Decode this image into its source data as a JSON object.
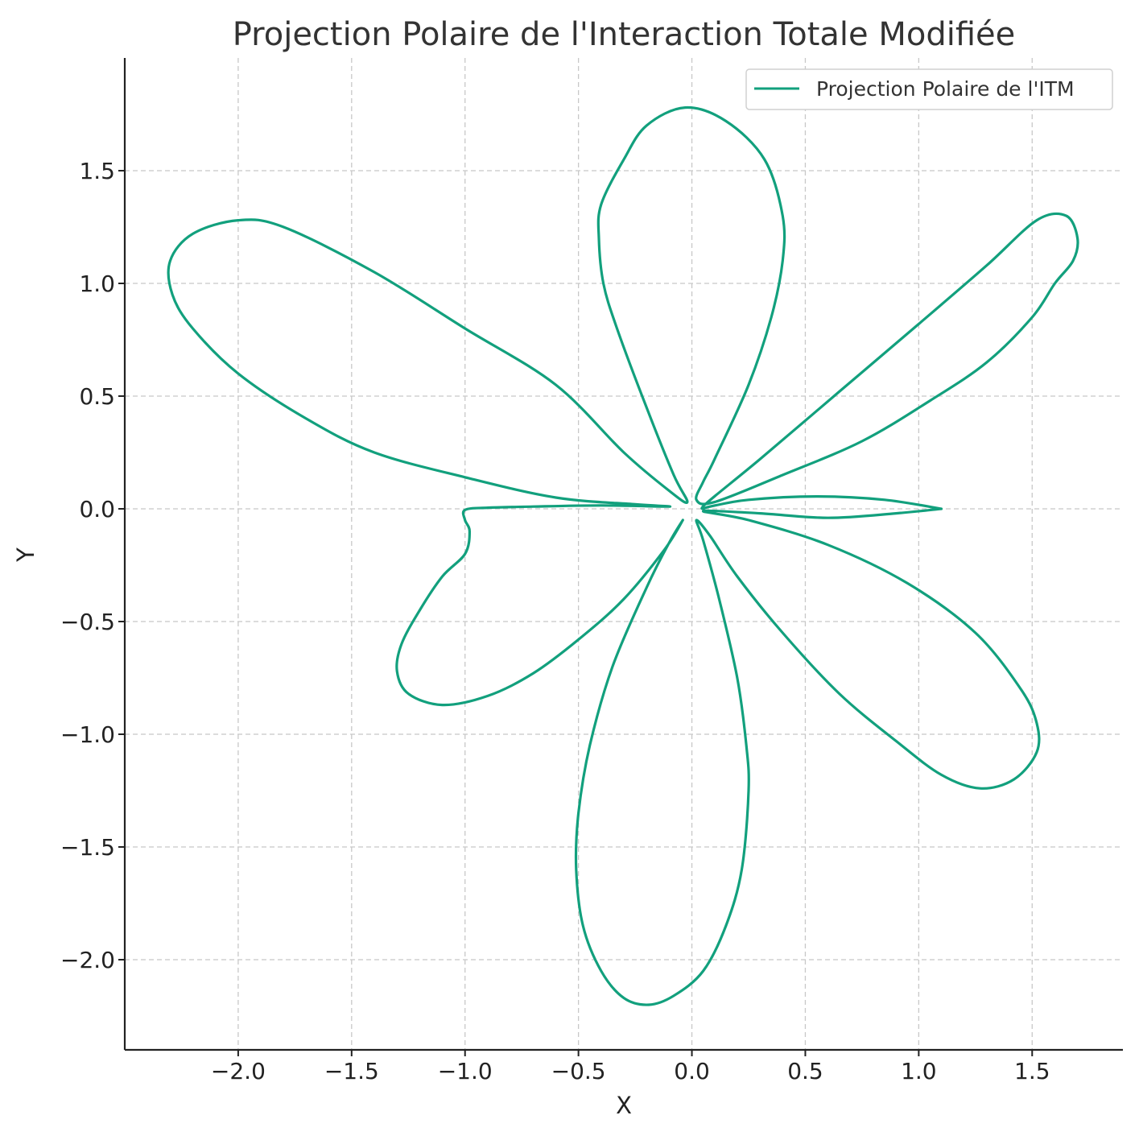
{
  "chart_data": {
    "type": "line",
    "title": "Projection Polaire de l'Interaction Totale Modifiée",
    "xlabel": "X",
    "ylabel": "Y",
    "xlim": [
      -2.5,
      1.9
    ],
    "ylim": [
      -2.4,
      2.0
    ],
    "x_ticks": [
      -2.0,
      -1.5,
      -1.0,
      -0.5,
      0.0,
      0.5,
      1.0,
      1.5
    ],
    "y_ticks": [
      -2.0,
      -1.5,
      -1.0,
      -0.5,
      0.0,
      0.5,
      1.0,
      1.5
    ],
    "x_tick_labels": [
      "−2.0",
      "−1.5",
      "−1.0",
      "−0.5",
      "0.0",
      "0.5",
      "1.0",
      "1.5"
    ],
    "y_tick_labels": [
      "−2.0",
      "−1.5",
      "−1.0",
      "−0.5",
      "0.0",
      "0.5",
      "1.0",
      "1.5"
    ],
    "grid": true,
    "legend_position": "top-right",
    "series": [
      {
        "name": "Projection Polaire de l'ITM",
        "color": "#12a07d",
        "points": [
          [
            1.1,
            0.0
          ],
          [
            0.85,
            0.04
          ],
          [
            0.55,
            0.055
          ],
          [
            0.25,
            0.04
          ],
          [
            0.08,
            0.01
          ],
          [
            0.05,
            0.0
          ],
          [
            0.07,
            0.03
          ],
          [
            0.3,
            0.22
          ],
          [
            0.65,
            0.52
          ],
          [
            1.0,
            0.82
          ],
          [
            1.3,
            1.08
          ],
          [
            1.52,
            1.28
          ],
          [
            1.65,
            1.3
          ],
          [
            1.7,
            1.2
          ],
          [
            1.68,
            1.1
          ],
          [
            1.6,
            1.0
          ],
          [
            1.5,
            0.85
          ],
          [
            1.3,
            0.65
          ],
          [
            1.05,
            0.48
          ],
          [
            0.75,
            0.3
          ],
          [
            0.4,
            0.15
          ],
          [
            0.1,
            0.03
          ],
          [
            0.02,
            0.04
          ],
          [
            0.05,
            0.12
          ],
          [
            0.1,
            0.22
          ],
          [
            0.25,
            0.55
          ],
          [
            0.35,
            0.85
          ],
          [
            0.4,
            1.1
          ],
          [
            0.4,
            1.3
          ],
          [
            0.32,
            1.55
          ],
          [
            0.15,
            1.72
          ],
          [
            -0.03,
            1.78
          ],
          [
            -0.2,
            1.7
          ],
          [
            -0.3,
            1.55
          ],
          [
            -0.4,
            1.35
          ],
          [
            -0.41,
            1.2
          ],
          [
            -0.39,
            1.0
          ],
          [
            -0.33,
            0.8
          ],
          [
            -0.2,
            0.45
          ],
          [
            -0.08,
            0.15
          ],
          [
            -0.02,
            0.03
          ],
          [
            -0.1,
            0.08
          ],
          [
            -0.3,
            0.25
          ],
          [
            -0.6,
            0.55
          ],
          [
            -1.0,
            0.8
          ],
          [
            -1.4,
            1.05
          ],
          [
            -1.8,
            1.25
          ],
          [
            -2.0,
            1.28
          ],
          [
            -2.2,
            1.22
          ],
          [
            -2.3,
            1.1
          ],
          [
            -2.29,
            0.95
          ],
          [
            -2.2,
            0.8
          ],
          [
            -2.0,
            0.6
          ],
          [
            -1.7,
            0.4
          ],
          [
            -1.4,
            0.25
          ],
          [
            -1.0,
            0.14
          ],
          [
            -0.6,
            0.05
          ],
          [
            -0.25,
            0.02
          ],
          [
            -0.1,
            0.01
          ],
          [
            -0.4,
            0.015
          ],
          [
            -0.7,
            0.01
          ],
          [
            -0.9,
            0.005
          ],
          [
            -1.0,
            -0.005
          ],
          [
            -1.0,
            -0.05
          ],
          [
            -0.98,
            -0.1
          ],
          [
            -1.0,
            -0.2
          ],
          [
            -1.1,
            -0.3
          ],
          [
            -1.2,
            -0.45
          ],
          [
            -1.28,
            -0.6
          ],
          [
            -1.3,
            -0.72
          ],
          [
            -1.25,
            -0.82
          ],
          [
            -1.1,
            -0.87
          ],
          [
            -0.9,
            -0.83
          ],
          [
            -0.7,
            -0.73
          ],
          [
            -0.5,
            -0.58
          ],
          [
            -0.3,
            -0.4
          ],
          [
            -0.12,
            -0.18
          ],
          [
            -0.04,
            -0.05
          ],
          [
            -0.1,
            -0.15
          ],
          [
            -0.2,
            -0.35
          ],
          [
            -0.35,
            -0.7
          ],
          [
            -0.45,
            -1.05
          ],
          [
            -0.5,
            -1.35
          ],
          [
            -0.51,
            -1.6
          ],
          [
            -0.48,
            -1.85
          ],
          [
            -0.4,
            -2.05
          ],
          [
            -0.3,
            -2.17
          ],
          [
            -0.19,
            -2.2
          ],
          [
            -0.08,
            -2.16
          ],
          [
            0.05,
            -2.05
          ],
          [
            0.15,
            -1.85
          ],
          [
            0.22,
            -1.6
          ],
          [
            0.25,
            -1.25
          ],
          [
            0.24,
            -1.05
          ],
          [
            0.2,
            -0.75
          ],
          [
            0.12,
            -0.4
          ],
          [
            0.05,
            -0.14
          ],
          [
            0.02,
            -0.05
          ],
          [
            0.08,
            -0.12
          ],
          [
            0.2,
            -0.3
          ],
          [
            0.4,
            -0.55
          ],
          [
            0.65,
            -0.82
          ],
          [
            0.9,
            -1.03
          ],
          [
            1.1,
            -1.18
          ],
          [
            1.27,
            -1.24
          ],
          [
            1.42,
            -1.2
          ],
          [
            1.52,
            -1.08
          ],
          [
            1.52,
            -0.95
          ],
          [
            1.45,
            -0.8
          ],
          [
            1.25,
            -0.55
          ],
          [
            0.95,
            -0.33
          ],
          [
            0.6,
            -0.16
          ],
          [
            0.25,
            -0.05
          ],
          [
            0.05,
            -0.01
          ],
          [
            0.3,
            -0.02
          ],
          [
            0.6,
            -0.04
          ],
          [
            0.9,
            -0.02
          ],
          [
            1.1,
            0.0
          ]
        ]
      }
    ]
  }
}
